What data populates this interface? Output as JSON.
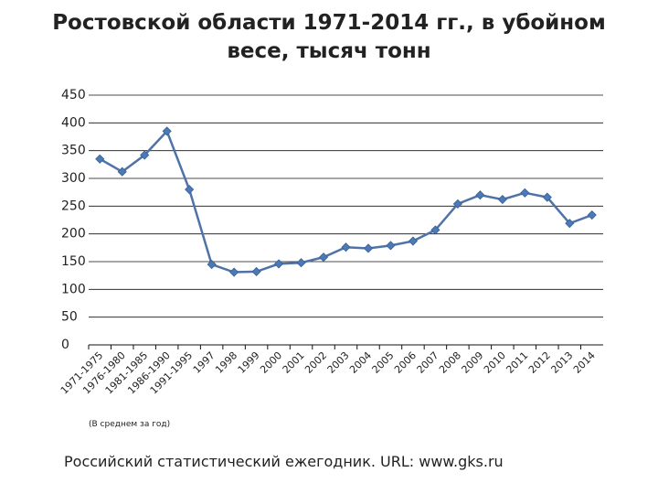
{
  "chart_data": {
    "type": "line",
    "title": [
      "Ростовской области 1971-2014 гг., в убойном",
      "весе, тысяч тонн"
    ],
    "categories": [
      "1971-1975",
      "1976-1980",
      "1981-1985",
      "1986-1990",
      "1991-1995",
      "1997",
      "1998",
      "1999",
      "2000",
      "2001",
      "2002",
      "2003",
      "2004",
      "2005",
      "2006",
      "2007",
      "2008",
      "2009",
      "2010",
      "2011",
      "2012",
      "2013",
      "2014"
    ],
    "values": [
      335,
      312,
      342,
      385,
      280,
      145,
      131,
      132,
      146,
      148,
      158,
      176,
      174,
      179,
      187,
      207,
      254,
      270,
      262,
      274,
      266,
      219,
      234
    ],
    "color": "#4f72a8",
    "ylim": [
      0,
      450
    ],
    "yticks": [
      0,
      50,
      100,
      150,
      200,
      250,
      300,
      350,
      400,
      450
    ],
    "grid": true,
    "note": "(В среднем за год)",
    "source": "Российский статистический ежегодник. URL: www.gks.ru"
  }
}
